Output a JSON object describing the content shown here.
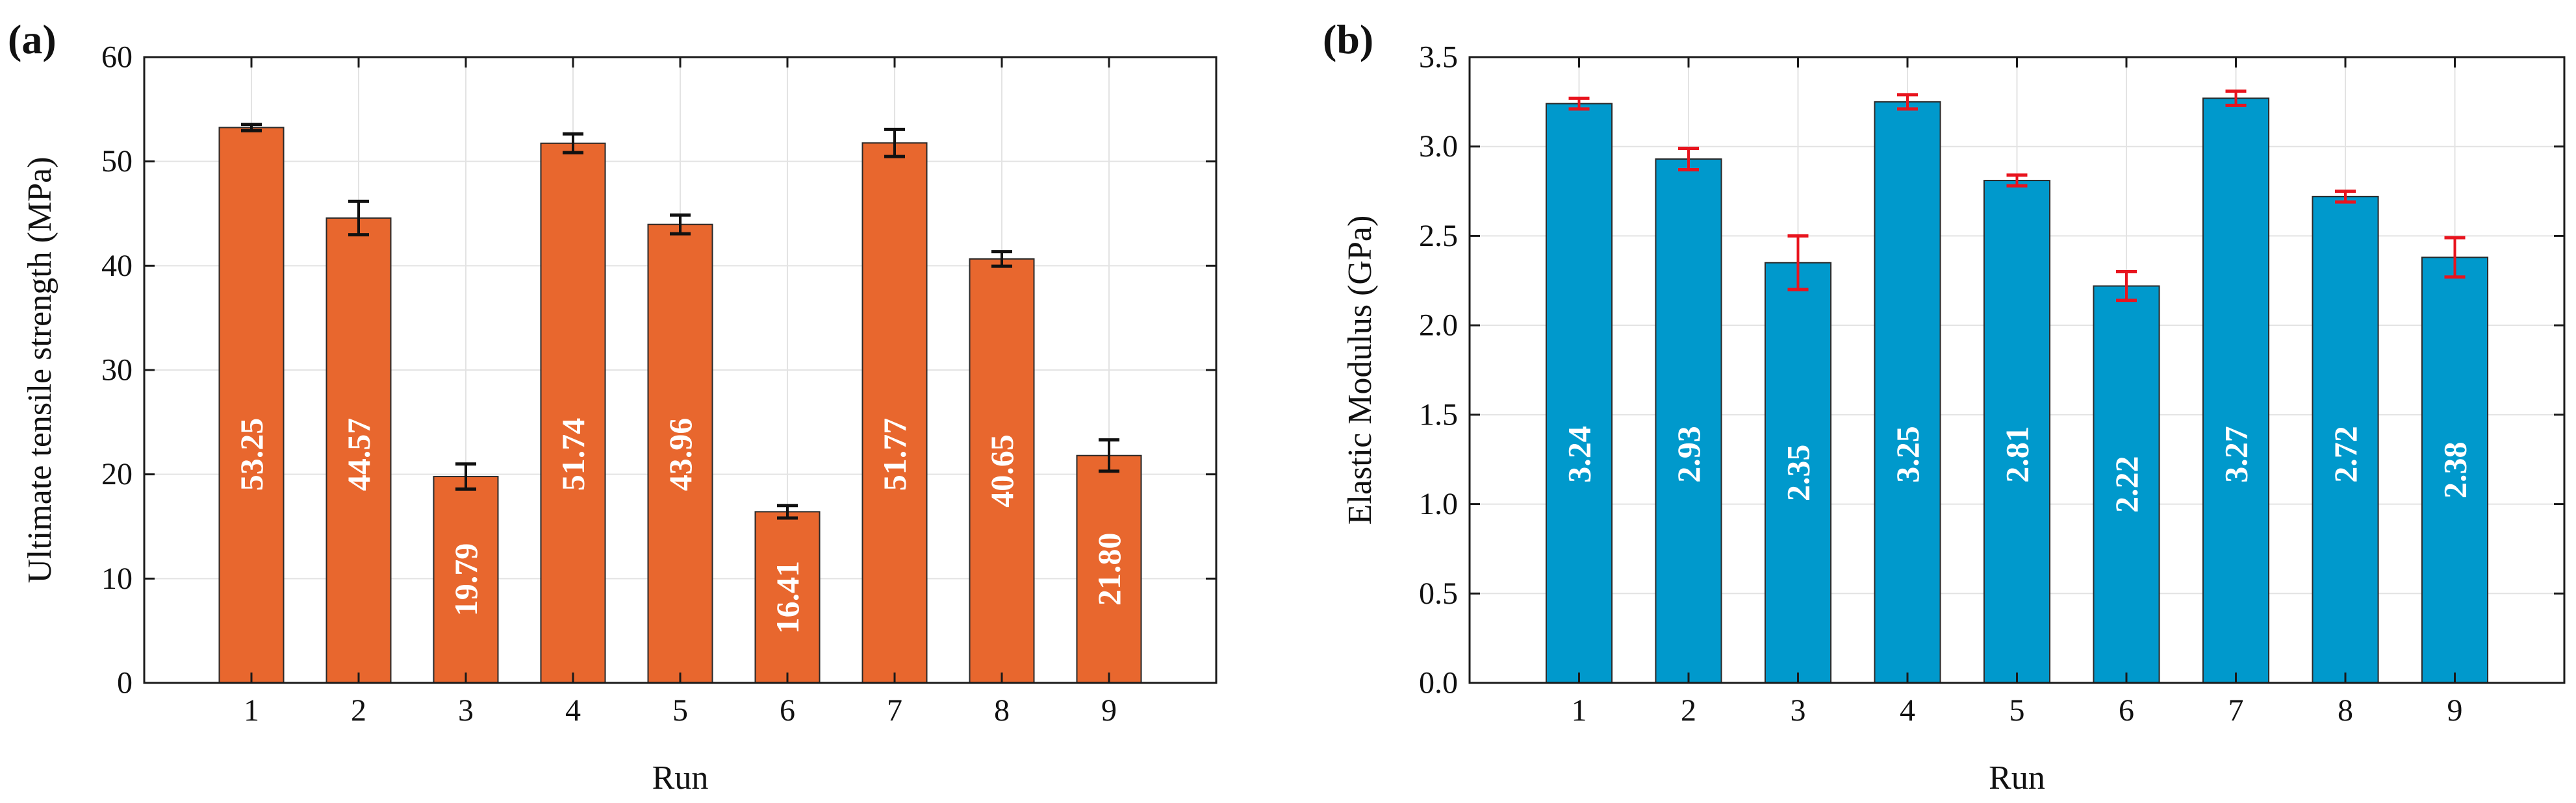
{
  "chart_data": [
    {
      "panel_label": "(a)",
      "type": "bar",
      "categories": [
        "1",
        "2",
        "3",
        "4",
        "5",
        "6",
        "7",
        "8",
        "9"
      ],
      "values": [
        53.25,
        44.57,
        19.79,
        51.74,
        43.96,
        16.41,
        51.77,
        40.65,
        21.8
      ],
      "value_labels": [
        "53.25",
        "44.57",
        "19.79",
        "51.74",
        "43.96",
        "16.41",
        "51.77",
        "40.65",
        "21.80"
      ],
      "error": [
        0.3,
        1.6,
        1.2,
        0.9,
        0.9,
        0.6,
        1.3,
        0.7,
        1.5
      ],
      "xlabel": "Run",
      "ylabel": "Ultimate tensile strength (MPa)",
      "ylim": [
        0,
        60
      ],
      "yticks": [
        0,
        10,
        20,
        30,
        40,
        50,
        60
      ],
      "ytick_labels": [
        "0",
        "10",
        "20",
        "30",
        "40",
        "50",
        "60"
      ],
      "xlim": [
        0,
        10
      ],
      "bar_color": "#e8672e",
      "error_color": "#111111",
      "grid": true
    },
    {
      "panel_label": "(b)",
      "type": "bar",
      "categories": [
        "1",
        "2",
        "3",
        "4",
        "5",
        "6",
        "7",
        "8",
        "9"
      ],
      "values": [
        3.24,
        2.93,
        2.35,
        3.25,
        2.81,
        2.22,
        3.27,
        2.72,
        2.38
      ],
      "value_labels": [
        "3.24",
        "2.93",
        "2.35",
        "3.25",
        "2.81",
        "2.22",
        "3.27",
        "2.72",
        "2.38"
      ],
      "error": [
        0.03,
        0.06,
        0.15,
        0.04,
        0.03,
        0.08,
        0.04,
        0.03,
        0.11
      ],
      "xlabel": "Run",
      "ylabel": "Elastic Modulus (GPa)",
      "ylim": [
        0,
        3.5
      ],
      "yticks": [
        0,
        0.5,
        1,
        1.5,
        2,
        2.5,
        3,
        3.5
      ],
      "ytick_labels": [
        "0.0",
        "0.5",
        "1.0",
        "1.5",
        "2.0",
        "2.5",
        "3.0",
        "3.5"
      ],
      "xlim": [
        0,
        10
      ],
      "bar_color": "#0099cc",
      "error_color": "#e8141e",
      "grid": true
    }
  ]
}
